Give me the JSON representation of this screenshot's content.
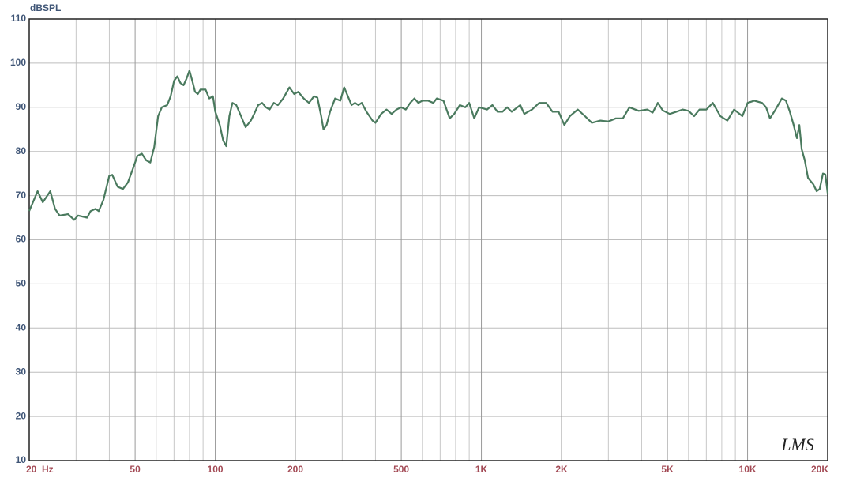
{
  "chart_data": {
    "type": "line",
    "y_label": "dBSPL",
    "logo": "LMS",
    "xscale": "log",
    "grid": true,
    "xlim": [
      20,
      20000
    ],
    "ylim": [
      10,
      110
    ],
    "yticks": [
      10,
      20,
      30,
      40,
      50,
      60,
      70,
      80,
      90,
      100,
      110
    ],
    "xticks": [
      {
        "value": 20,
        "label": "20  Hz"
      },
      50,
      100,
      200,
      500,
      {
        "value": 1000,
        "label": "1K"
      },
      {
        "value": 2000,
        "label": "2K"
      },
      {
        "value": 5000,
        "label": "5K"
      },
      {
        "value": 10000,
        "label": "10K"
      },
      {
        "value": 20000,
        "label": "20K"
      }
    ],
    "xminorticks": [
      30,
      40,
      60,
      70,
      80,
      90,
      300,
      400,
      600,
      700,
      800,
      900,
      3000,
      4000,
      6000,
      7000,
      8000,
      9000
    ],
    "series": [
      {
        "color": "#4a7a5e",
        "x": [
          20,
          21.5,
          22.5,
          24,
          25,
          26,
          28,
          29.5,
          30.5,
          33,
          34,
          35.5,
          36.5,
          38,
          40,
          41,
          43,
          45,
          47,
          49,
          51,
          53,
          55,
          57,
          59,
          61,
          63,
          66,
          68,
          70,
          72,
          74,
          76,
          78,
          80,
          82,
          84,
          86,
          88,
          92,
          95,
          98,
          100,
          104,
          107,
          110,
          113,
          116,
          120,
          125,
          130,
          136,
          140,
          145,
          150,
          155,
          160,
          166,
          172,
          180,
          190,
          198,
          205,
          215,
          225,
          235,
          242,
          250,
          255,
          262,
          270,
          282,
          295,
          305,
          315,
          325,
          335,
          345,
          355,
          370,
          390,
          400,
          420,
          440,
          460,
          480,
          500,
          520,
          540,
          560,
          580,
          600,
          630,
          660,
          680,
          720,
          760,
          790,
          830,
          870,
          900,
          940,
          980,
          1050,
          1100,
          1150,
          1200,
          1250,
          1300,
          1400,
          1450,
          1550,
          1650,
          1750,
          1850,
          1950,
          2050,
          2150,
          2300,
          2450,
          2600,
          2800,
          3000,
          3200,
          3400,
          3600,
          3900,
          4200,
          4400,
          4600,
          4800,
          5100,
          5400,
          5700,
          6000,
          6300,
          6600,
          7000,
          7400,
          7900,
          8400,
          8900,
          9560,
          10000,
          10600,
          11340,
          11740,
          12140,
          12740,
          13460,
          13930,
          14420,
          14900,
          15320,
          15650,
          15970,
          16400,
          16870,
          17690,
          18170,
          18670,
          19200,
          19600,
          20000
        ],
        "values": [
          66.5,
          71,
          68.5,
          71,
          67,
          65.5,
          65.8,
          64.5,
          65.5,
          65,
          66.5,
          67,
          66.5,
          69,
          74.5,
          74.7,
          72,
          71.5,
          73,
          76,
          79,
          79.5,
          78,
          77.5,
          81,
          88,
          90,
          90.5,
          92.5,
          96,
          97,
          95.5,
          95,
          96.5,
          98.3,
          96,
          93.5,
          93,
          94,
          94,
          92,
          92.5,
          89,
          86,
          82.5,
          81.2,
          88,
          91,
          90.5,
          88,
          85.5,
          87,
          88.5,
          90.5,
          91,
          90,
          89.5,
          91,
          90.5,
          92,
          94.5,
          93,
          93.5,
          92,
          91,
          92.5,
          92.2,
          88,
          85,
          86,
          89,
          92,
          91.5,
          94.5,
          92.5,
          90.5,
          91,
          90.5,
          91,
          89,
          87,
          86.5,
          88.5,
          89.5,
          88.5,
          89.5,
          90,
          89.5,
          91,
          92,
          91,
          91.5,
          91.5,
          91,
          92,
          91.5,
          87.5,
          88.5,
          90.5,
          90,
          91,
          87.5,
          90,
          89.5,
          90.5,
          89,
          89,
          90,
          89,
          90.5,
          88.5,
          89.5,
          91,
          91,
          89,
          89,
          86,
          88,
          89.5,
          88,
          86.5,
          87,
          86.8,
          87.5,
          87.5,
          90,
          89.2,
          89.5,
          88.8,
          91,
          89.3,
          88.5,
          89,
          89.5,
          89.2,
          88,
          89.5,
          89.5,
          91,
          88,
          87,
          89.5,
          88,
          91,
          91.5,
          91,
          90,
          87.5,
          89.5,
          92,
          91.5,
          89,
          86,
          83,
          86,
          80.5,
          78,
          74,
          72.5,
          71,
          71.5,
          75,
          74.8,
          70.5
        ]
      }
    ]
  }
}
